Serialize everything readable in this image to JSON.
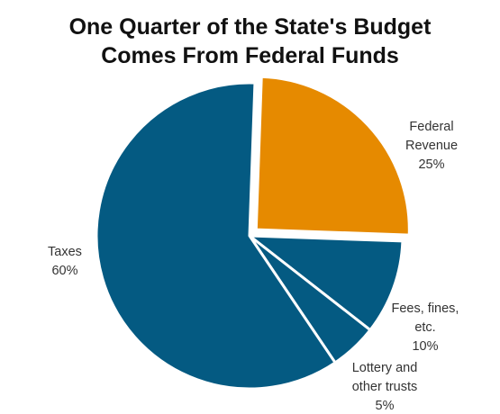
{
  "chart_data": {
    "type": "pie",
    "title": [
      "One Quarter of the State's Budget",
      "Comes From Federal Funds"
    ],
    "slices": [
      {
        "name": "Federal Revenue",
        "label_lines": [
          "Federal",
          "Revenue",
          "25%"
        ],
        "value": 25,
        "color": "#e68a00",
        "exploded": true
      },
      {
        "name": "Fees, fines, etc.",
        "label_lines": [
          "Fees, fines,",
          "etc.",
          "10%"
        ],
        "value": 10,
        "color": "#045a82",
        "exploded": false
      },
      {
        "name": "Lottery and other trusts",
        "label_lines": [
          "Lottery and",
          "other trusts",
          "5%"
        ],
        "value": 5,
        "color": "#045a82",
        "exploded": false
      },
      {
        "name": "Taxes",
        "label_lines": [
          "Taxes",
          "60%"
        ],
        "value": 60,
        "color": "#045a82",
        "exploded": false
      }
    ]
  }
}
